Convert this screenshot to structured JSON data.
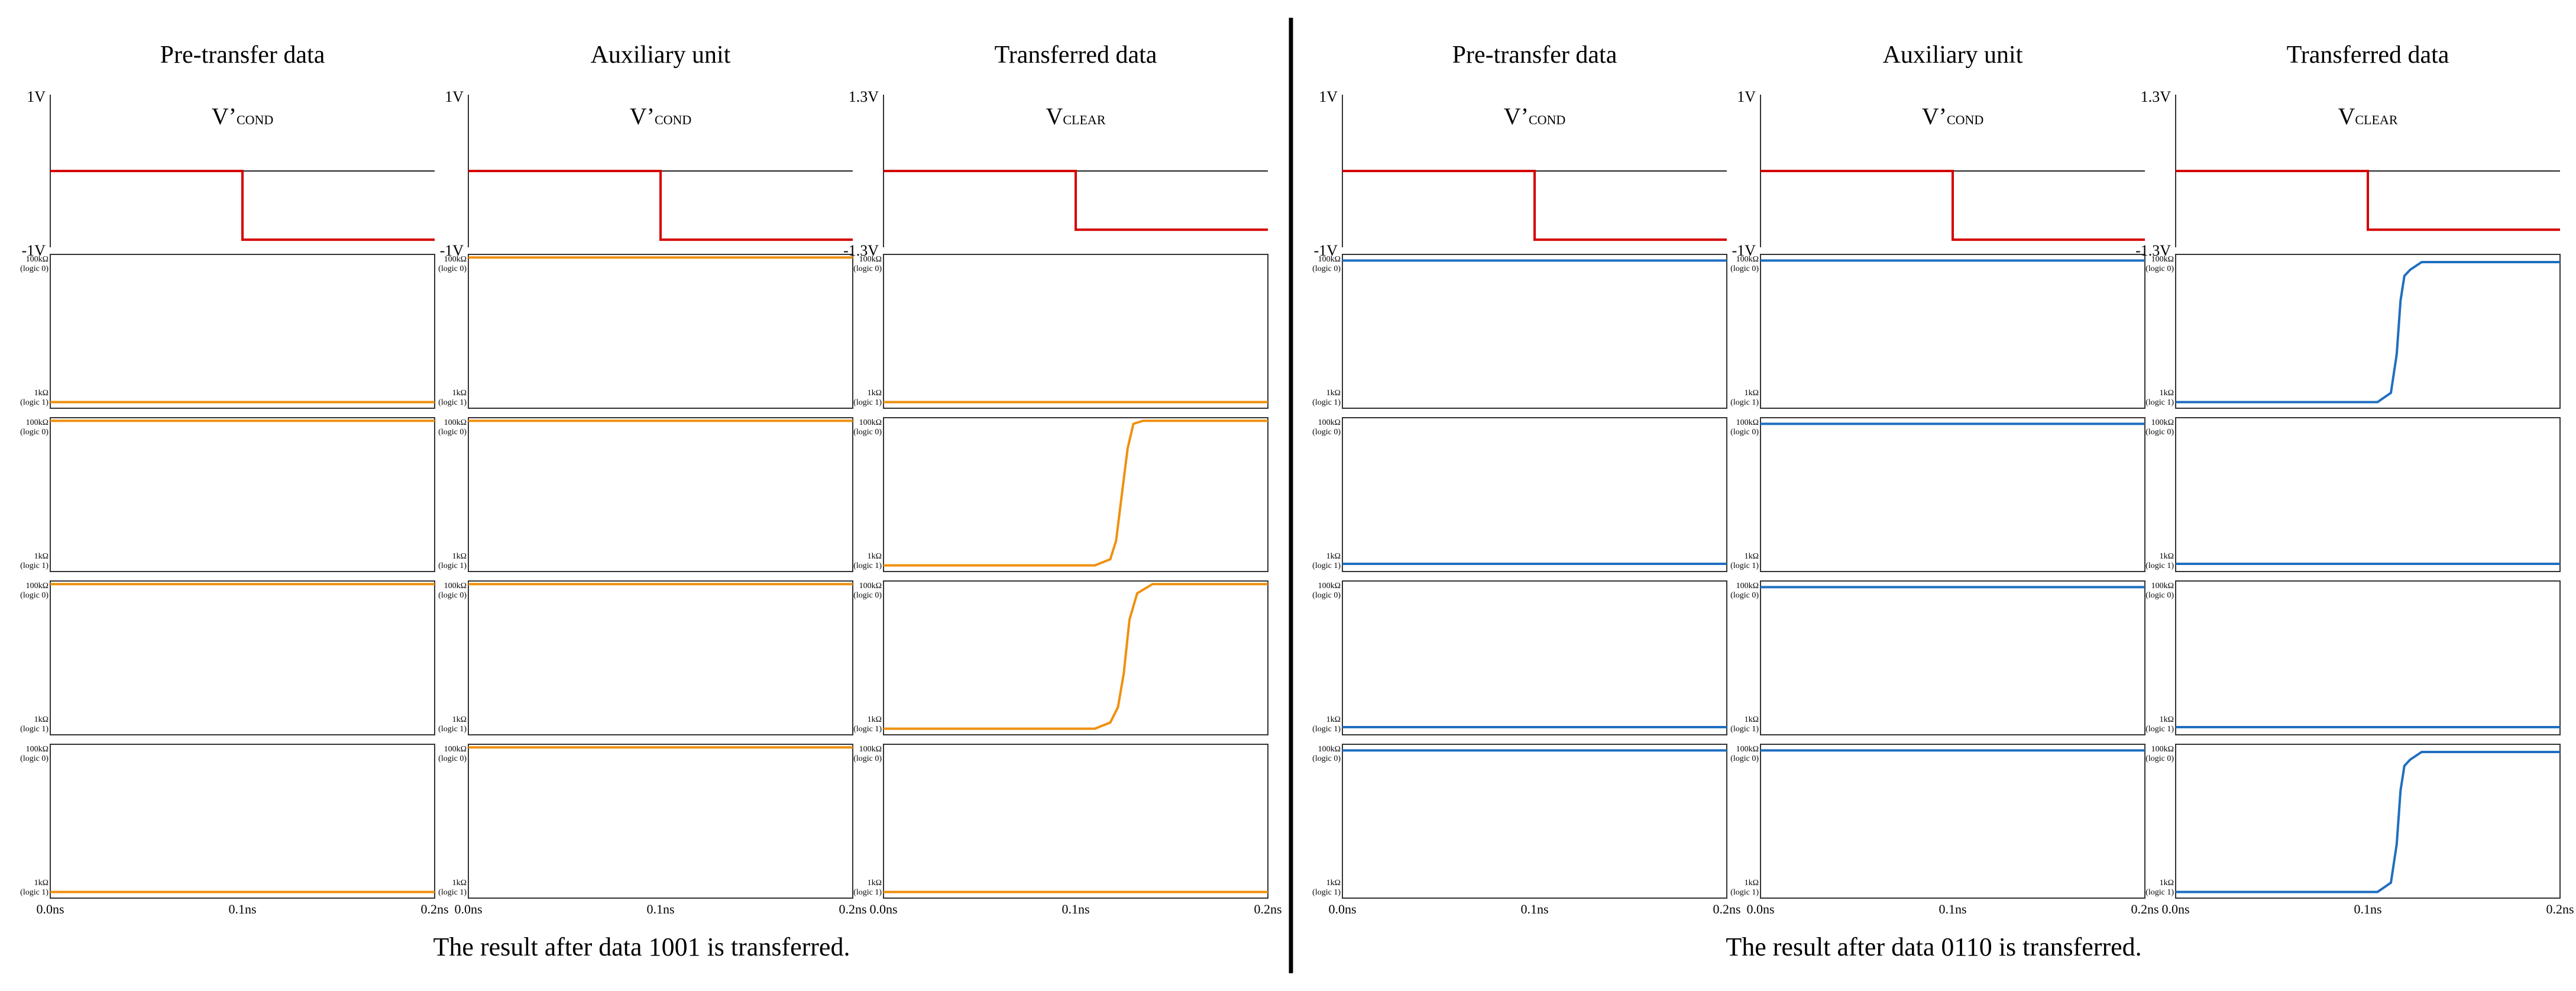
{
  "colors": {
    "voltage": "#d40000",
    "orange": "#f0900f",
    "blue": "#1f6fc0",
    "frame": "#333333",
    "baseline": "#222222"
  },
  "chart_data": [
    {
      "panel": "left",
      "type": "line",
      "caption": "The result after data 1001 is transferred.",
      "trace_color": "orange",
      "x_ticks": [
        "0.0ns",
        "0.1ns",
        "0.2ns"
      ],
      "xlim": [
        0,
        0.2
      ],
      "columns": [
        {
          "title": "Pre-transfer data",
          "signal": {
            "main": "V’",
            "sub": "COND"
          },
          "v_ticks": {
            "top": "1V",
            "bottom": "-1V"
          },
          "ylim": [
            -1,
            1
          ],
          "voltage": {
            "x": [
              0,
              0.1,
              0.1,
              0.2
            ],
            "y": [
              0,
              0,
              -0.9,
              -0.9
            ]
          },
          "resistance": [
            {
              "top": "100kΩ",
              "top_logic": "(logic 0)",
              "bottom": "1kΩ",
              "bottom_logic": "(logic 1)",
              "x": [
                0,
                0.2
              ],
              "y": [
                0.04,
                0.04
              ]
            },
            {
              "top": "100kΩ",
              "top_logic": "(logic 0)",
              "bottom": "1kΩ",
              "bottom_logic": "(logic 1)",
              "x": [
                0,
                0.2
              ],
              "y": [
                0.98,
                0.98
              ]
            },
            {
              "top": "100kΩ",
              "top_logic": "(logic 0)",
              "bottom": "1kΩ",
              "bottom_logic": "(logic 1)",
              "x": [
                0,
                0.2
              ],
              "y": [
                0.98,
                0.98
              ]
            },
            {
              "top": "100kΩ",
              "top_logic": "(logic 0)",
              "bottom": "1kΩ",
              "bottom_logic": "(logic 1)",
              "x": [
                0,
                0.2
              ],
              "y": [
                0.04,
                0.04
              ]
            }
          ]
        },
        {
          "title": "Auxiliary unit",
          "signal": {
            "main": "V’",
            "sub": "COND"
          },
          "v_ticks": {
            "top": "1V",
            "bottom": "-1V"
          },
          "ylim": [
            -1,
            1
          ],
          "voltage": {
            "x": [
              0,
              0.1,
              0.1,
              0.2
            ],
            "y": [
              0,
              0,
              -0.9,
              -0.9
            ]
          },
          "resistance": [
            {
              "top": "100kΩ",
              "top_logic": "(logic 0)",
              "bottom": "1kΩ",
              "bottom_logic": "(logic 1)",
              "x": [
                0,
                0.2
              ],
              "y": [
                0.98,
                0.98
              ]
            },
            {
              "top": "100kΩ",
              "top_logic": "(logic 0)",
              "bottom": "1kΩ",
              "bottom_logic": "(logic 1)",
              "x": [
                0,
                0.2
              ],
              "y": [
                0.98,
                0.98
              ]
            },
            {
              "top": "100kΩ",
              "top_logic": "(logic 0)",
              "bottom": "1kΩ",
              "bottom_logic": "(logic 1)",
              "x": [
                0,
                0.2
              ],
              "y": [
                0.98,
                0.98
              ]
            },
            {
              "top": "100kΩ",
              "top_logic": "(logic 0)",
              "bottom": "1kΩ",
              "bottom_logic": "(logic 1)",
              "x": [
                0,
                0.2
              ],
              "y": [
                0.98,
                0.98
              ]
            }
          ]
        },
        {
          "title": "Transferred data",
          "signal": {
            "main": "V",
            "sub": "CLEAR"
          },
          "v_ticks": {
            "top": "1.3V",
            "bottom": "-1.3V"
          },
          "ylim": [
            -1.3,
            1.3
          ],
          "voltage": {
            "x": [
              0,
              0.1,
              0.1,
              0.2
            ],
            "y": [
              0,
              0,
              -1.0,
              -1.0
            ]
          },
          "resistance": [
            {
              "top": "100kΩ",
              "top_logic": "(logic 0)",
              "bottom": "1kΩ",
              "bottom_logic": "(logic 1)",
              "x": [
                0,
                0.2
              ],
              "y": [
                0.04,
                0.04
              ]
            },
            {
              "top": "100kΩ",
              "top_logic": "(logic 0)",
              "bottom": "1kΩ",
              "bottom_logic": "(logic 1)",
              "x": [
                0,
                0.11,
                0.118,
                0.121,
                0.124,
                0.127,
                0.13,
                0.135,
                0.2
              ],
              "y": [
                0.04,
                0.04,
                0.08,
                0.2,
                0.5,
                0.8,
                0.96,
                0.98,
                0.98
              ]
            },
            {
              "top": "100kΩ",
              "top_logic": "(logic 0)",
              "bottom": "1kΩ",
              "bottom_logic": "(logic 1)",
              "x": [
                0,
                0.11,
                0.118,
                0.122,
                0.125,
                0.128,
                0.132,
                0.14,
                0.2
              ],
              "y": [
                0.04,
                0.04,
                0.08,
                0.18,
                0.4,
                0.75,
                0.92,
                0.98,
                0.98
              ]
            },
            {
              "top": "100kΩ",
              "top_logic": "(logic 0)",
              "bottom": "1kΩ",
              "bottom_logic": "(logic 1)",
              "x": [
                0,
                0.2
              ],
              "y": [
                0.04,
                0.04
              ]
            }
          ]
        }
      ]
    },
    {
      "panel": "right",
      "type": "line",
      "caption": "The result after data 0110 is transferred.",
      "trace_color": "blue",
      "x_ticks": [
        "0.0ns",
        "0.1ns",
        "0.2ns"
      ],
      "xlim": [
        0,
        0.2
      ],
      "columns": [
        {
          "title": "Pre-transfer data",
          "signal": {
            "main": "V’",
            "sub": "COND"
          },
          "v_ticks": {
            "top": "1V",
            "bottom": "-1V"
          },
          "ylim": [
            -1,
            1
          ],
          "voltage": {
            "x": [
              0,
              0.1,
              0.1,
              0.2
            ],
            "y": [
              0,
              0,
              -0.9,
              -0.9
            ]
          },
          "resistance": [
            {
              "top": "100kΩ",
              "top_logic": "(logic 0)",
              "bottom": "1kΩ",
              "bottom_logic": "(logic 1)",
              "x": [
                0,
                0.2
              ],
              "y": [
                0.96,
                0.96
              ]
            },
            {
              "top": "100kΩ",
              "top_logic": "(logic 0)",
              "bottom": "1kΩ",
              "bottom_logic": "(logic 1)",
              "x": [
                0,
                0.2
              ],
              "y": [
                0.05,
                0.05
              ]
            },
            {
              "top": "100kΩ",
              "top_logic": "(logic 0)",
              "bottom": "1kΩ",
              "bottom_logic": "(logic 1)",
              "x": [
                0,
                0.2
              ],
              "y": [
                0.05,
                0.05
              ]
            },
            {
              "top": "100kΩ",
              "top_logic": "(logic 0)",
              "bottom": "1kΩ",
              "bottom_logic": "(logic 1)",
              "x": [
                0,
                0.2
              ],
              "y": [
                0.96,
                0.96
              ]
            }
          ]
        },
        {
          "title": "Auxiliary unit",
          "signal": {
            "main": "V’",
            "sub": "COND"
          },
          "v_ticks": {
            "top": "1V",
            "bottom": "-1V"
          },
          "ylim": [
            -1,
            1
          ],
          "voltage": {
            "x": [
              0,
              0.1,
              0.1,
              0.2
            ],
            "y": [
              0,
              0,
              -0.9,
              -0.9
            ]
          },
          "resistance": [
            {
              "top": "100kΩ",
              "top_logic": "(logic 0)",
              "bottom": "1kΩ",
              "bottom_logic": "(logic 1)",
              "x": [
                0,
                0.2
              ],
              "y": [
                0.96,
                0.96
              ]
            },
            {
              "top": "100kΩ",
              "top_logic": "(logic 0)",
              "bottom": "1kΩ",
              "bottom_logic": "(logic 1)",
              "x": [
                0,
                0.2
              ],
              "y": [
                0.96,
                0.96
              ]
            },
            {
              "top": "100kΩ",
              "top_logic": "(logic 0)",
              "bottom": "1kΩ",
              "bottom_logic": "(logic 1)",
              "x": [
                0,
                0.2
              ],
              "y": [
                0.96,
                0.96
              ]
            },
            {
              "top": "100kΩ",
              "top_logic": "(logic 0)",
              "bottom": "1kΩ",
              "bottom_logic": "(logic 1)",
              "x": [
                0,
                0.2
              ],
              "y": [
                0.96,
                0.96
              ]
            }
          ]
        },
        {
          "title": "Transferred data",
          "signal": {
            "main": "V",
            "sub": "CLEAR"
          },
          "v_ticks": {
            "top": "1.3V",
            "bottom": "-1.3V"
          },
          "ylim": [
            -1.3,
            1.3
          ],
          "voltage": {
            "x": [
              0,
              0.1,
              0.1,
              0.2
            ],
            "y": [
              0,
              0,
              -1.0,
              -1.0
            ]
          },
          "resistance": [
            {
              "top": "100kΩ",
              "top_logic": "(logic 0)",
              "bottom": "1kΩ",
              "bottom_logic": "(logic 1)",
              "x": [
                0,
                0.105,
                0.112,
                0.115,
                0.117,
                0.119,
                0.122,
                0.128,
                0.2
              ],
              "y": [
                0.04,
                0.04,
                0.1,
                0.35,
                0.7,
                0.86,
                0.9,
                0.95,
                0.95
              ]
            },
            {
              "top": "100kΩ",
              "top_logic": "(logic 0)",
              "bottom": "1kΩ",
              "bottom_logic": "(logic 1)",
              "x": [
                0,
                0.2
              ],
              "y": [
                0.05,
                0.05
              ]
            },
            {
              "top": "100kΩ",
              "top_logic": "(logic 0)",
              "bottom": "1kΩ",
              "bottom_logic": "(logic 1)",
              "x": [
                0,
                0.2
              ],
              "y": [
                0.05,
                0.05
              ]
            },
            {
              "top": "100kΩ",
              "top_logic": "(logic 0)",
              "bottom": "1kΩ",
              "bottom_logic": "(logic 1)",
              "x": [
                0,
                0.105,
                0.112,
                0.115,
                0.117,
                0.119,
                0.122,
                0.128,
                0.2
              ],
              "y": [
                0.04,
                0.04,
                0.1,
                0.35,
                0.7,
                0.86,
                0.9,
                0.95,
                0.95
              ]
            }
          ]
        }
      ]
    }
  ]
}
